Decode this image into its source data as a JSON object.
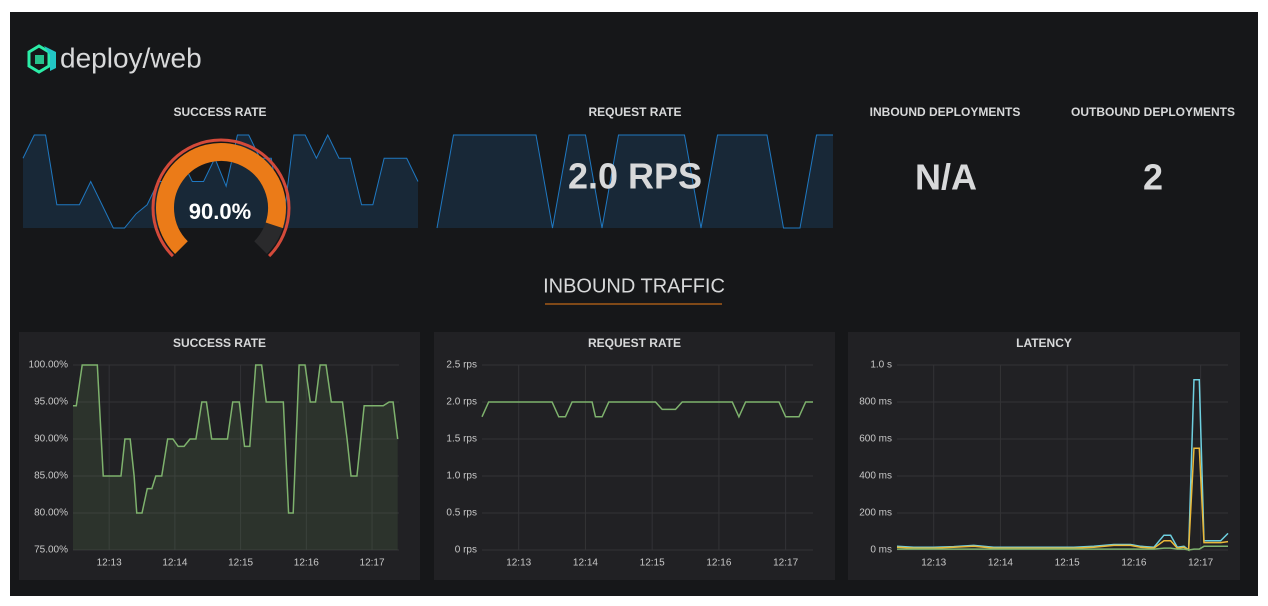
{
  "header": {
    "title": "deploy/web"
  },
  "stats": [
    {
      "title": "SUCCESS RATE",
      "value": 90,
      "value_label": "90.0%",
      "range": [
        0,
        100
      ],
      "color": "#eb7b18",
      "sparkline": [
        95,
        100,
        100,
        85,
        85,
        85,
        90,
        85,
        80,
        80,
        83,
        85,
        90,
        90,
        95,
        90,
        90,
        95,
        89,
        100,
        100,
        95,
        95,
        80,
        100,
        100,
        95,
        100,
        95,
        95,
        85,
        85,
        95,
        95,
        95,
        90
      ]
    },
    {
      "title": "REQUEST RATE",
      "value": 2,
      "value_label": "2.0 RPS",
      "sparkline": [
        1.8,
        2.0,
        2.0,
        2.0,
        2.0,
        2.0,
        2.0,
        1.8,
        2.0,
        2.0,
        1.8,
        2.0,
        2.0,
        2.0,
        2.0,
        2.0,
        1.8,
        2.0,
        2.0,
        2.0,
        2.0,
        1.8,
        1.8,
        2.0,
        2.0
      ]
    },
    {
      "title": "INBOUND DEPLOYMENTS",
      "value_label": "N/A"
    },
    {
      "title": "OUTBOUND DEPLOYMENTS",
      "value": 2
    }
  ],
  "section": {
    "title": "INBOUND TRAFFIC"
  },
  "chart_data": [
    {
      "type": "line",
      "title": "SUCCESS RATE",
      "x": [
        12.45,
        12.5,
        12.59,
        12.82,
        12.91,
        13.18,
        13.24,
        13.32,
        13.38,
        13.42,
        13.5,
        13.58,
        13.65,
        13.71,
        13.8,
        13.89,
        13.97,
        14.05,
        14.14,
        14.23,
        14.32,
        14.41,
        14.48,
        14.56,
        14.8,
        14.88,
        14.98,
        15.06,
        15.14,
        15.23,
        15.32,
        15.39,
        15.65,
        15.73,
        15.8,
        15.89,
        15.98,
        16.06,
        16.14,
        16.21,
        16.3,
        16.38,
        16.55,
        16.62,
        16.68,
        16.77,
        16.88,
        17.17,
        17.26,
        17.32,
        17.39
      ],
      "series": [
        {
          "color": "#7eb26d",
          "fill": true,
          "values": [
            94.5,
            94.5,
            100,
            100,
            85,
            85,
            90,
            90,
            85,
            80,
            80,
            83.3,
            83.3,
            85,
            85,
            90,
            90,
            89,
            89,
            90,
            90,
            95,
            95,
            90,
            90,
            95,
            95,
            89,
            89,
            100,
            100,
            95,
            95,
            80,
            80,
            100,
            100,
            95,
            95,
            100,
            100,
            95,
            95,
            90,
            85,
            85,
            94.5,
            94.5,
            95,
            95,
            90
          ]
        }
      ],
      "xlim": [
        12.45,
        17.41
      ],
      "xticks": [
        {
          "value": 13,
          "label": "12:13"
        },
        {
          "value": 14,
          "label": "12:14"
        },
        {
          "value": 15,
          "label": "12:15"
        },
        {
          "value": 16,
          "label": "12:16"
        },
        {
          "value": 17,
          "label": "12:17"
        }
      ],
      "ylim": [
        75,
        100
      ],
      "yticks": [
        {
          "value": 75,
          "label": "75.00%"
        },
        {
          "value": 80,
          "label": "80.00%"
        },
        {
          "value": 85,
          "label": "85.00%"
        },
        {
          "value": 90,
          "label": "90.00%"
        },
        {
          "value": 95,
          "label": "95.00%"
        },
        {
          "value": 100,
          "label": "100.00%"
        }
      ],
      "grid": true
    },
    {
      "type": "line",
      "title": "REQUEST RATE",
      "x": [
        12.45,
        12.55,
        13.5,
        13.6,
        13.7,
        13.8,
        14.1,
        14.15,
        14.25,
        14.35,
        15.05,
        15.15,
        15.35,
        15.45,
        16.2,
        16.3,
        16.4,
        16.55,
        16.9,
        17.0,
        17.2,
        17.3,
        17.41
      ],
      "series": [
        {
          "color": "#7eb26d",
          "fill": false,
          "values": [
            1.8,
            2.0,
            2.0,
            1.8,
            1.8,
            2.0,
            2.0,
            1.8,
            1.8,
            2.0,
            2.0,
            1.9,
            1.9,
            2.0,
            2.0,
            1.8,
            2.0,
            2.0,
            2.0,
            1.8,
            1.8,
            2.0,
            2.0
          ]
        }
      ],
      "xlim": [
        12.45,
        17.41
      ],
      "xticks": [
        {
          "value": 13,
          "label": "12:13"
        },
        {
          "value": 14,
          "label": "12:14"
        },
        {
          "value": 15,
          "label": "12:15"
        },
        {
          "value": 16,
          "label": "12:16"
        },
        {
          "value": 17,
          "label": "12:17"
        }
      ],
      "ylim": [
        0,
        2.5
      ],
      "yticks": [
        {
          "value": 0,
          "label": "0 rps"
        },
        {
          "value": 0.5,
          "label": "0.5 rps"
        },
        {
          "value": 1,
          "label": "1.0 rps"
        },
        {
          "value": 1.5,
          "label": "1.5 rps"
        },
        {
          "value": 2,
          "label": "2.0 rps"
        },
        {
          "value": 2.5,
          "label": "2.5 rps"
        }
      ],
      "grid": true
    },
    {
      "type": "line",
      "title": "LATENCY",
      "x": [
        12.45,
        12.7,
        13.0,
        13.3,
        13.6,
        13.9,
        14.2,
        14.5,
        14.8,
        15.1,
        15.4,
        15.7,
        15.95,
        16.1,
        16.3,
        16.45,
        16.55,
        16.65,
        16.75,
        16.82,
        16.9,
        16.98,
        17.05,
        17.3,
        17.41
      ],
      "series": [
        {
          "color": "#6ed0e0",
          "fill": false,
          "values": [
            20,
            15,
            15,
            18,
            25,
            15,
            15,
            15,
            15,
            15,
            20,
            30,
            30,
            20,
            15,
            80,
            80,
            15,
            20,
            0,
            920,
            920,
            50,
            50,
            90
          ]
        },
        {
          "color": "#eab839",
          "fill": false,
          "values": [
            15,
            10,
            10,
            15,
            20,
            10,
            10,
            10,
            10,
            10,
            15,
            25,
            25,
            15,
            10,
            50,
            50,
            10,
            15,
            0,
            550,
            550,
            40,
            40,
            45
          ]
        },
        {
          "color": "#7eb26d",
          "fill": false,
          "values": [
            5,
            5,
            5,
            5,
            5,
            5,
            5,
            5,
            5,
            5,
            5,
            5,
            5,
            5,
            5,
            10,
            10,
            5,
            5,
            0,
            5,
            5,
            20,
            20,
            20
          ]
        }
      ],
      "xlim": [
        12.45,
        17.41
      ],
      "xticks": [
        {
          "value": 13,
          "label": "12:13"
        },
        {
          "value": 14,
          "label": "12:14"
        },
        {
          "value": 15,
          "label": "12:15"
        },
        {
          "value": 16,
          "label": "12:16"
        },
        {
          "value": 17,
          "label": "12:17"
        }
      ],
      "ylim": [
        0,
        1000
      ],
      "yticks": [
        {
          "value": 0,
          "label": "0 ms"
        },
        {
          "value": 200,
          "label": "200 ms"
        },
        {
          "value": 400,
          "label": "400 ms"
        },
        {
          "value": 600,
          "label": "600 ms"
        },
        {
          "value": 800,
          "label": "800 ms"
        },
        {
          "value": 1000,
          "label": "1.0 s"
        }
      ],
      "grid": true
    }
  ]
}
